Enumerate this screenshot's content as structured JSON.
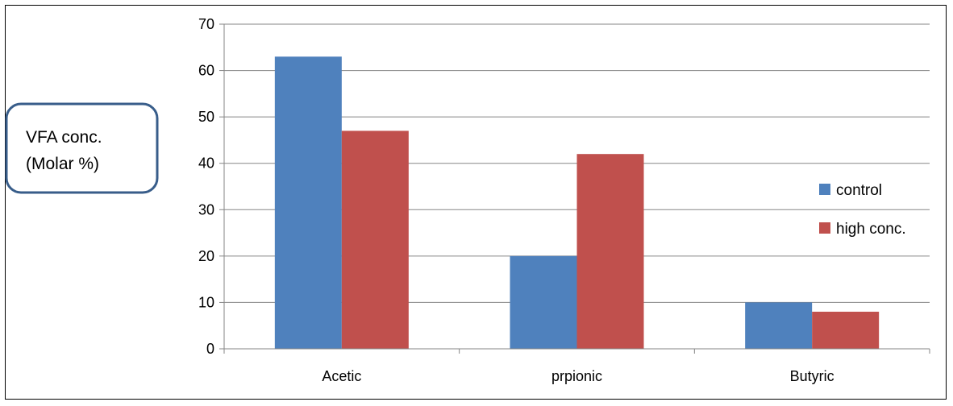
{
  "chart_data": {
    "type": "bar",
    "categories": [
      "Acetic",
      "prpionic",
      "Butyric"
    ],
    "series": [
      {
        "name": "control",
        "values": [
          63,
          20,
          10
        ],
        "color": "#4F81BD"
      },
      {
        "name": "high conc.",
        "values": [
          47,
          42,
          8
        ],
        "color": "#C0504D"
      }
    ],
    "ylabel_lines": [
      "VFA conc.",
      "(Molar %)"
    ],
    "ylim": [
      0,
      70
    ],
    "yticks": [
      0,
      10,
      20,
      30,
      40,
      50,
      60,
      70
    ],
    "grid": true,
    "legend_position": "right",
    "ylabel_box_border_color": "#385D8A",
    "gridline_color": "#868686"
  }
}
